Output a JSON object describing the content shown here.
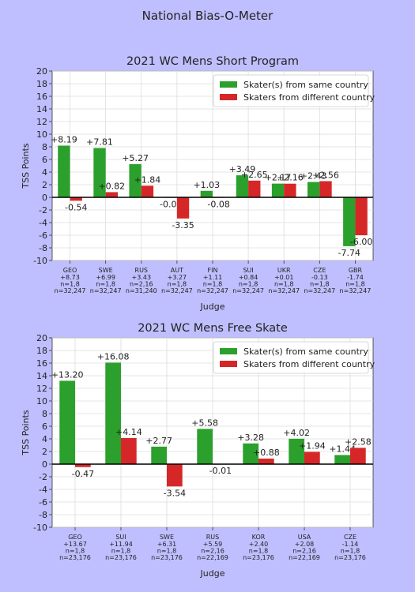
{
  "page": {
    "title": "National Bias-O-Meter"
  },
  "colors": {
    "same": "#2ca02c",
    "diff": "#d62728",
    "background": "#bfbfff",
    "plot": "#ffffff"
  },
  "chart_data": [
    {
      "type": "bar",
      "title": "2021 WC Mens Short Program",
      "xlabel": "Judge",
      "ylabel": "TSS Points",
      "ylim": [
        -10,
        20
      ],
      "yticks": [
        -10,
        -8,
        -6,
        -4,
        -2,
        0,
        2,
        4,
        6,
        8,
        10,
        12,
        14,
        16,
        18,
        20
      ],
      "grid": true,
      "legend_position": "top-right",
      "categories": [
        "GEO",
        "SWE",
        "RUS",
        "AUT",
        "FIN",
        "SUI",
        "UKR",
        "CZE",
        "GBR"
      ],
      "category_details": [
        [
          "+8.73",
          "n=1,8",
          "n=32,247"
        ],
        [
          "+6.99",
          "n=1,8",
          "n=32,247"
        ],
        [
          "+3.43",
          "n=2,16",
          "n=31,240"
        ],
        [
          "+3.27",
          "n=1,8",
          "n=32,247"
        ],
        [
          "+1.11",
          "n=1,8",
          "n=32,247"
        ],
        [
          "+0.84",
          "n=1,8",
          "n=32,247"
        ],
        [
          "+0.01",
          "n=1,8",
          "n=32,247"
        ],
        [
          "-0.13",
          "n=1,8",
          "n=32,247"
        ],
        [
          "-1.74",
          "n=1,8",
          "n=32,247"
        ]
      ],
      "series": [
        {
          "name": "Skater(s) from same country",
          "values": [
            8.19,
            7.81,
            5.27,
            -0.08,
            1.03,
            3.49,
            2.17,
            2.43,
            -7.74
          ],
          "labels": [
            "+8.19",
            "+7.81",
            "+5.27",
            "-0.08",
            "+1.03",
            "+3.49",
            "+2.17",
            "+2.43",
            "-7.74"
          ]
        },
        {
          "name": "Skaters from different country",
          "values": [
            -0.54,
            0.82,
            1.84,
            -3.35,
            -0.08,
            2.65,
            2.16,
            2.56,
            -6.0
          ],
          "labels": [
            "-0.54",
            "+0.82",
            "+1.84",
            "-3.35",
            "-0.08",
            "+2.65",
            "+2.16",
            "+2.56",
            "-6.00"
          ]
        }
      ]
    },
    {
      "type": "bar",
      "title": "2021 WC Mens Free Skate",
      "xlabel": "Judge",
      "ylabel": "TSS Points",
      "ylim": [
        -10,
        20
      ],
      "yticks": [
        -10,
        -8,
        -6,
        -4,
        -2,
        0,
        2,
        4,
        6,
        8,
        10,
        12,
        14,
        16,
        18,
        20
      ],
      "grid": true,
      "legend_position": "top-right",
      "categories": [
        "GEO",
        "SUI",
        "SWE",
        "RUS",
        "KOR",
        "USA",
        "CZE"
      ],
      "category_details": [
        [
          "+13.67",
          "n=1,8",
          "n=23,176"
        ],
        [
          "+11.94",
          "n=1,8",
          "n=23,176"
        ],
        [
          "+6.31",
          "n=1,8",
          "n=23,176"
        ],
        [
          "+5.59",
          "n=2,16",
          "n=22,169"
        ],
        [
          "+2.40",
          "n=1,8",
          "n=23,176"
        ],
        [
          "+2.08",
          "n=2,16",
          "n=22,169"
        ],
        [
          "-1.14",
          "n=1,8",
          "n=23,176"
        ]
      ],
      "series": [
        {
          "name": "Skater(s) from same country",
          "values": [
            13.2,
            16.08,
            2.77,
            5.58,
            3.28,
            4.02,
            1.44
          ],
          "labels": [
            "+13.20",
            "+16.08",
            "+2.77",
            "+5.58",
            "+3.28",
            "+4.02",
            "+1.44"
          ]
        },
        {
          "name": "Skaters from different country",
          "values": [
            -0.47,
            4.14,
            -3.54,
            -0.01,
            0.88,
            1.94,
            2.58
          ],
          "labels": [
            "-0.47",
            "+4.14",
            "-3.54",
            "-0.01",
            "+0.88",
            "+1.94",
            "+2.58"
          ]
        }
      ]
    }
  ]
}
